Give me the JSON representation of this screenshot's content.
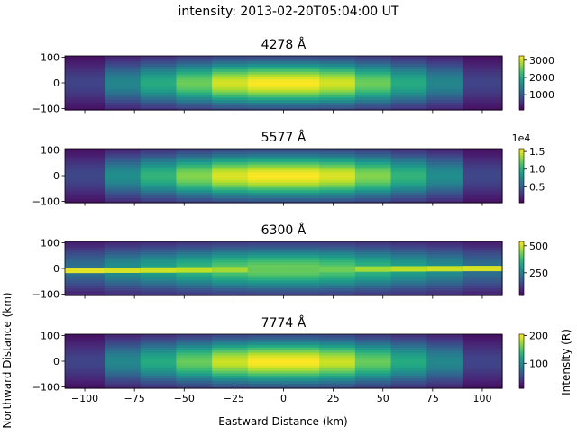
{
  "figure": {
    "suptitle": "intensity: 2013-02-20T05:04:00 UT",
    "xlabel": "Eastward Distance (km)",
    "ylabel": "Northward Distance (km)",
    "cbar_label": "Intensity (R)"
  },
  "colormap": "viridis",
  "chart_data": [
    {
      "type": "heatmap",
      "title": "4278 Å",
      "xlim": [
        -110,
        110
      ],
      "ylim": [
        -105,
        105
      ],
      "x_edges": [
        -110,
        -90,
        -72,
        -54,
        -36,
        -18,
        0,
        18,
        36,
        54,
        72,
        90,
        110
      ],
      "column_peaks": [
        750,
        1550,
        2050,
        2550,
        3050,
        3250,
        3250,
        3050,
        2550,
        2050,
        1550,
        750
      ],
      "y_profile": "gaussian",
      "y_sigma": 60,
      "vmin": 120,
      "vmax": 3250,
      "x_ticks": [
        -100,
        -75,
        -50,
        -25,
        0,
        25,
        50,
        75,
        100
      ],
      "y_ticks": [
        -100,
        0,
        100
      ],
      "cbar_ticks": [
        1000,
        2000,
        3000
      ],
      "cbar_tick_labels": [
        "1000",
        "2000",
        "3000"
      ],
      "cbar_offset": ""
    },
    {
      "type": "heatmap",
      "title": "5577 Å",
      "xlim": [
        -110,
        110
      ],
      "ylim": [
        -105,
        105
      ],
      "x_edges": [
        -110,
        -90,
        -72,
        -54,
        -36,
        -18,
        0,
        18,
        36,
        54,
        72,
        90,
        110
      ],
      "column_peaks": [
        3800,
        8000,
        10500,
        13000,
        15000,
        15800,
        15800,
        15000,
        13000,
        10500,
        8000,
        3800
      ],
      "y_profile": "gaussian",
      "y_sigma": 60,
      "vmin": 500,
      "vmax": 15800,
      "x_ticks": [
        -100,
        -75,
        -50,
        -25,
        0,
        25,
        50,
        75,
        100
      ],
      "y_ticks": [
        -100,
        0,
        100
      ],
      "cbar_ticks": [
        5000,
        10000,
        15000
      ],
      "cbar_tick_labels": [
        "0.5",
        "1.0",
        "1.5"
      ],
      "cbar_offset": "1e4"
    },
    {
      "type": "heatmap",
      "title": "6300 Å",
      "xlim": [
        -110,
        110
      ],
      "ylim": [
        -105,
        105
      ],
      "x_edges": [
        -110,
        -90,
        -72,
        -54,
        -36,
        -18,
        0,
        18,
        36,
        54,
        72,
        90,
        110
      ],
      "column_peaks": [
        230,
        290,
        330,
        370,
        410,
        430,
        430,
        410,
        370,
        330,
        290,
        230
      ],
      "y_profile": "gaussian",
      "y_sigma": 60,
      "line_feature": {
        "y_at_left": -8,
        "y_at_right": 0,
        "values": [
          520,
          510,
          500,
          490,
          470,
          420,
          420,
          430,
          470,
          490,
          500,
          510
        ]
      },
      "vmin": 40,
      "vmax": 540,
      "x_ticks": [
        -100,
        -75,
        -50,
        -25,
        0,
        25,
        50,
        75,
        100
      ],
      "y_ticks": [
        -100,
        0,
        100
      ],
      "cbar_ticks": [
        250,
        500
      ],
      "cbar_tick_labels": [
        "250",
        "500"
      ],
      "cbar_offset": ""
    },
    {
      "type": "heatmap",
      "title": "7774 Å",
      "xlim": [
        -110,
        110
      ],
      "ylim": [
        -105,
        105
      ],
      "x_edges": [
        -110,
        -90,
        -72,
        -54,
        -36,
        -18,
        0,
        18,
        36,
        54,
        72,
        90,
        110
      ],
      "column_peaks": [
        50,
        100,
        130,
        160,
        190,
        205,
        205,
        190,
        160,
        130,
        100,
        50
      ],
      "y_profile": "gaussian",
      "y_sigma": 60,
      "vmin": 10,
      "vmax": 205,
      "x_ticks": [
        -100,
        -75,
        -50,
        -25,
        0,
        25,
        50,
        75,
        100
      ],
      "y_ticks": [
        -100,
        0,
        100
      ],
      "cbar_ticks": [
        100,
        200
      ],
      "cbar_tick_labels": [
        "100",
        "200"
      ],
      "cbar_offset": ""
    }
  ]
}
